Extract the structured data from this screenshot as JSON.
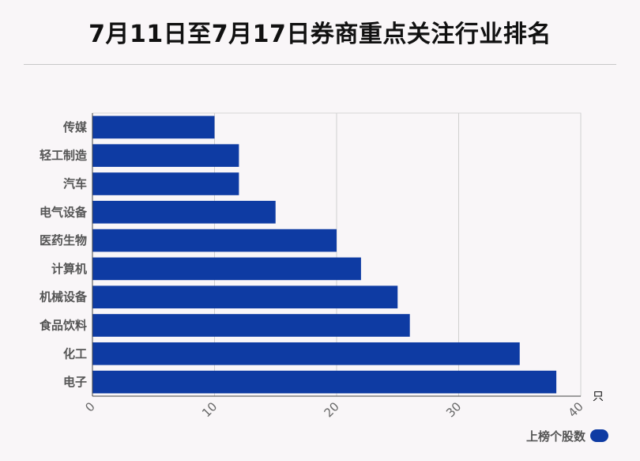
{
  "chart_data": {
    "type": "bar",
    "orientation": "horizontal",
    "title": "7月11日至7月17日券商重点关注行业排名",
    "categories": [
      "传媒",
      "轻工制造",
      "汽车",
      "电气设备",
      "医药生物",
      "计算机",
      "机械设备",
      "食品饮料",
      "化工",
      "电子"
    ],
    "series": [
      {
        "name": "上榜个股数",
        "values": [
          10,
          12,
          12,
          15,
          20,
          22,
          25,
          26,
          35,
          38
        ]
      }
    ],
    "xlim": [
      0,
      40
    ],
    "x_ticks": [
      0,
      10,
      20,
      30,
      40
    ],
    "x_unit": "只",
    "grid": true,
    "legend_position": "bottom-right",
    "bar_color": "#0e3ba3"
  }
}
